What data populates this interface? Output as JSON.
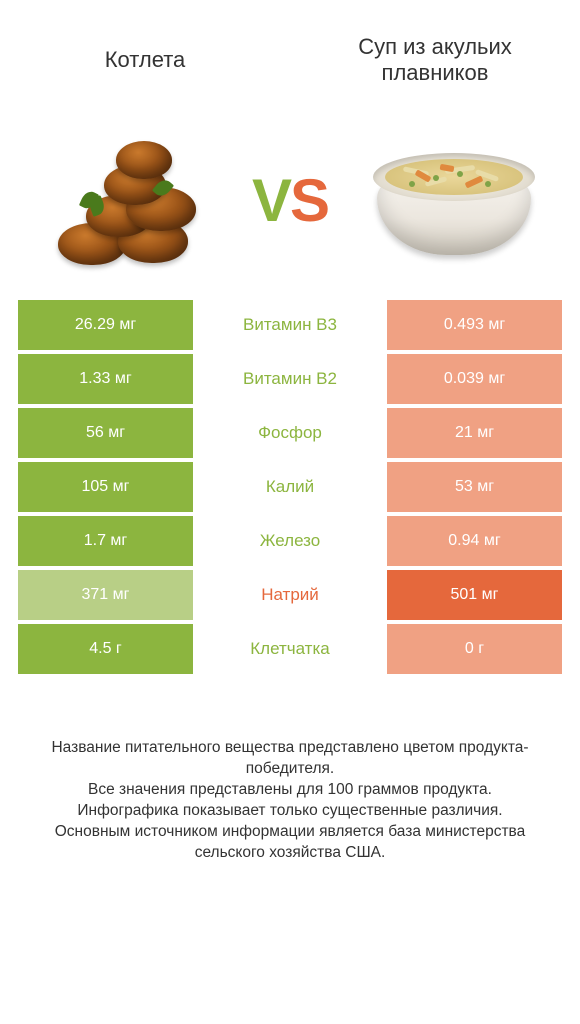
{
  "colors": {
    "left": "#8cb53f",
    "right": "#e5683c",
    "left_dim": "#b8cf86",
    "right_dim": "#f0a183",
    "mid_left_text": "#8cb53f",
    "mid_right_text": "#e5683c"
  },
  "header": {
    "left_title": "Котлета",
    "right_title": "Суп из акульих плавников"
  },
  "vs": {
    "v": "V",
    "s": "S"
  },
  "rows": [
    {
      "label": "Витамин B3",
      "left": "26.29 мг",
      "right": "0.493 мг",
      "winner": "left"
    },
    {
      "label": "Витамин B2",
      "left": "1.33 мг",
      "right": "0.039 мг",
      "winner": "left"
    },
    {
      "label": "Фосфор",
      "left": "56 мг",
      "right": "21 мг",
      "winner": "left"
    },
    {
      "label": "Калий",
      "left": "105 мг",
      "right": "53 мг",
      "winner": "left"
    },
    {
      "label": "Железо",
      "left": "1.7 мг",
      "right": "0.94 мг",
      "winner": "left"
    },
    {
      "label": "Натрий",
      "left": "371 мг",
      "right": "501 мг",
      "winner": "right"
    },
    {
      "label": "Клетчатка",
      "left": "4.5 г",
      "right": "0 г",
      "winner": "left"
    }
  ],
  "footer": {
    "line1": "Название питательного вещества представлено цветом продукта-победителя.",
    "line2": "Все значения представлены для 100 граммов продукта.",
    "line3": "Инфографика показывает только существенные различия.",
    "line4": "Основным источником информации является база министерства сельского хозяйства США."
  }
}
